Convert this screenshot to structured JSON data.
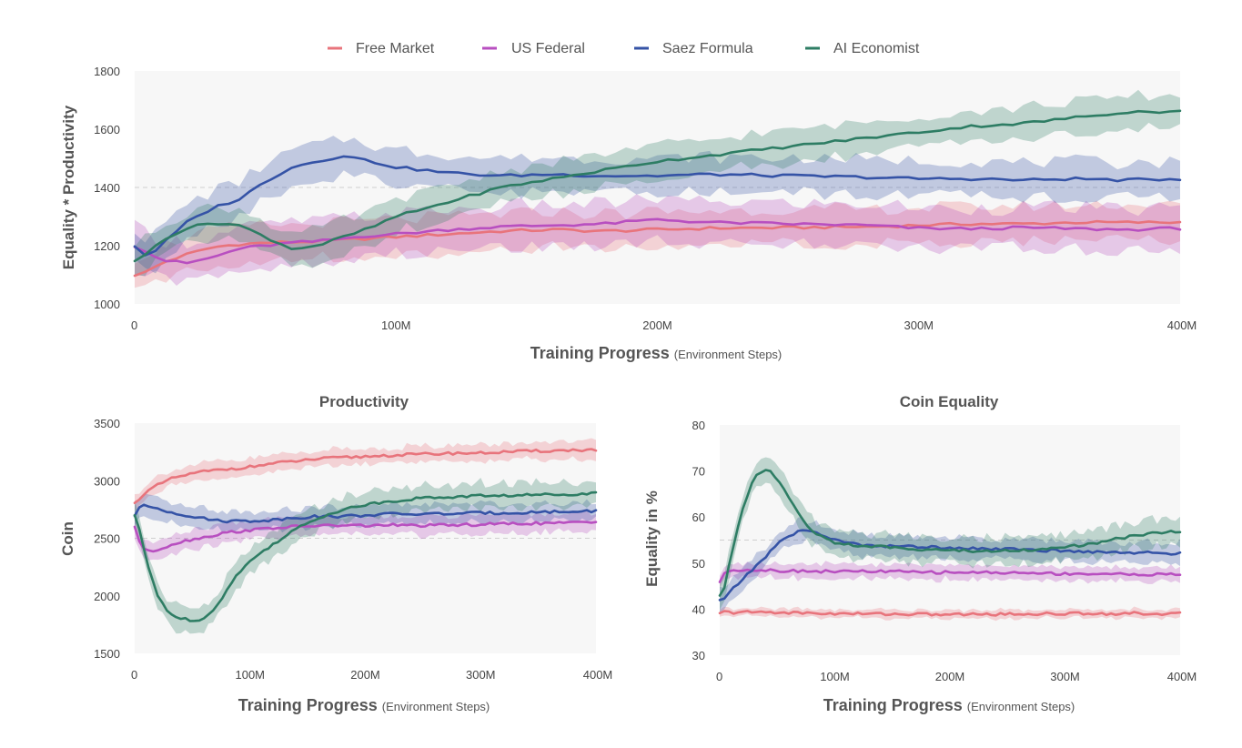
{
  "legend": [
    {
      "name": "Free Market",
      "color": "#e8747c"
    },
    {
      "name": "US Federal",
      "color": "#b84fc0"
    },
    {
      "name": "Saez Formula",
      "color": "#3553a6"
    },
    {
      "name": "AI Economist",
      "color": "#2e7d64"
    }
  ],
  "chart_data": [
    {
      "id": "top",
      "type": "line",
      "title": "",
      "xlabel_main": "Training Progress",
      "xlabel_sub": "(Environment Steps)",
      "ylabel": "Equality * Productivity",
      "xlim": [
        0,
        400
      ],
      "ylim": [
        1000,
        1800
      ],
      "xticks": [
        0,
        100,
        200,
        300,
        400
      ],
      "xtick_labels": [
        "0",
        "100M",
        "200M",
        "300M",
        "400M"
      ],
      "yticks": [
        1000,
        1200,
        1400,
        1600,
        1800
      ],
      "ytick_labels": [
        "1000",
        "1200",
        "1400",
        "1600",
        "1800"
      ],
      "reference_line": 1400,
      "x": [
        0,
        5,
        10,
        20,
        30,
        40,
        50,
        60,
        70,
        80,
        90,
        100,
        120,
        140,
        160,
        180,
        200,
        220,
        250,
        280,
        300,
        320,
        340,
        360,
        380,
        400
      ],
      "series": [
        {
          "name": "Free Market",
          "band": 60,
          "values": [
            1100,
            1110,
            1140,
            1170,
            1195,
            1205,
            1210,
            1212,
            1215,
            1220,
            1225,
            1230,
            1240,
            1250,
            1255,
            1250,
            1255,
            1260,
            1262,
            1265,
            1270,
            1275,
            1275,
            1280,
            1280,
            1280
          ]
        },
        {
          "name": "US Federal",
          "band": 70,
          "values": [
            1200,
            1180,
            1150,
            1140,
            1160,
            1190,
            1200,
            1210,
            1215,
            1225,
            1235,
            1240,
            1255,
            1265,
            1270,
            1275,
            1290,
            1280,
            1275,
            1270,
            1260,
            1258,
            1262,
            1258,
            1255,
            1260
          ]
        },
        {
          "name": "Saez Formula",
          "band": 60,
          "values": [
            1200,
            1160,
            1200,
            1280,
            1330,
            1360,
            1420,
            1470,
            1490,
            1510,
            1490,
            1470,
            1450,
            1440,
            1445,
            1440,
            1440,
            1445,
            1440,
            1435,
            1430,
            1430,
            1425,
            1430,
            1425,
            1430
          ]
        },
        {
          "name": "AI Economist",
          "band": 55,
          "values": [
            1150,
            1170,
            1220,
            1260,
            1280,
            1270,
            1230,
            1190,
            1200,
            1230,
            1260,
            1300,
            1350,
            1400,
            1430,
            1460,
            1490,
            1510,
            1540,
            1570,
            1590,
            1610,
            1620,
            1640,
            1660,
            1660
          ]
        }
      ]
    },
    {
      "id": "bl",
      "type": "line",
      "title": "Productivity",
      "xlabel_main": "Training Progress",
      "xlabel_sub": "(Environment Steps)",
      "ylabel": "Coin",
      "xlim": [
        0,
        400
      ],
      "ylim": [
        1500,
        3500
      ],
      "xticks": [
        0,
        100,
        200,
        300,
        400
      ],
      "xtick_labels": [
        "0",
        "100M",
        "200M",
        "300M",
        "400M"
      ],
      "yticks": [
        1500,
        2000,
        2500,
        3000,
        3500
      ],
      "ytick_labels": [
        "1500",
        "2000",
        "2500",
        "3000",
        "3500"
      ],
      "reference_line": 2500,
      "x": [
        0,
        5,
        10,
        20,
        30,
        40,
        50,
        60,
        70,
        80,
        90,
        100,
        120,
        140,
        160,
        180,
        200,
        220,
        250,
        280,
        300,
        320,
        340,
        360,
        380,
        400
      ],
      "series": [
        {
          "name": "Free Market",
          "band": 70,
          "values": [
            2800,
            2860,
            2900,
            2960,
            3010,
            3040,
            3060,
            3080,
            3090,
            3100,
            3110,
            3120,
            3150,
            3170,
            3190,
            3200,
            3210,
            3220,
            3230,
            3240,
            3240,
            3250,
            3255,
            3260,
            3265,
            3270
          ]
        },
        {
          "name": "US Federal",
          "band": 80,
          "values": [
            2600,
            2450,
            2380,
            2400,
            2440,
            2470,
            2490,
            2510,
            2530,
            2550,
            2560,
            2570,
            2590,
            2600,
            2610,
            2610,
            2610,
            2615,
            2610,
            2615,
            2620,
            2625,
            2630,
            2630,
            2635,
            2640
          ]
        },
        {
          "name": "Saez Formula",
          "band": 80,
          "values": [
            2700,
            2780,
            2780,
            2760,
            2730,
            2710,
            2690,
            2670,
            2660,
            2650,
            2650,
            2650,
            2660,
            2680,
            2690,
            2690,
            2700,
            2710,
            2710,
            2715,
            2720,
            2720,
            2725,
            2730,
            2730,
            2740
          ]
        },
        {
          "name": "AI Economist",
          "band": 110,
          "values": [
            2700,
            2550,
            2300,
            2000,
            1850,
            1800,
            1790,
            1800,
            1900,
            2050,
            2200,
            2300,
            2450,
            2580,
            2680,
            2750,
            2790,
            2820,
            2850,
            2860,
            2870,
            2870,
            2875,
            2880,
            2885,
            2890
          ]
        }
      ]
    },
    {
      "id": "br",
      "type": "line",
      "title": "Coin Equality",
      "xlabel_main": "Training Progress",
      "xlabel_sub": "(Environment Steps)",
      "ylabel": "Equality in %",
      "xlim": [
        0,
        400
      ],
      "ylim": [
        30,
        80
      ],
      "xticks": [
        0,
        100,
        200,
        300,
        400
      ],
      "xtick_labels": [
        "0",
        "100M",
        "200M",
        "300M",
        "400M"
      ],
      "yticks": [
        30,
        40,
        50,
        60,
        70,
        80
      ],
      "ytick_labels": [
        "30",
        "40",
        "50",
        "60",
        "70",
        "80"
      ],
      "reference_line": 55,
      "x": [
        0,
        5,
        10,
        20,
        30,
        40,
        50,
        60,
        70,
        80,
        90,
        100,
        120,
        140,
        160,
        180,
        200,
        220,
        250,
        280,
        300,
        320,
        340,
        360,
        380,
        400
      ],
      "series": [
        {
          "name": "Free Market",
          "band": 0.9,
          "values": [
            39,
            39.5,
            39.2,
            39.4,
            39.3,
            39.4,
            39.3,
            39.2,
            39.2,
            39.1,
            39.1,
            39.0,
            39.0,
            39.0,
            38.9,
            38.9,
            38.8,
            38.9,
            38.9,
            39.0,
            39.0,
            39.1,
            39.0,
            39.1,
            39.0,
            39.0
          ]
        },
        {
          "name": "US Federal",
          "band": 1.5,
          "values": [
            46,
            48,
            48.5,
            48.6,
            48.5,
            48.5,
            48.4,
            48.3,
            48.3,
            48.3,
            48.2,
            48.2,
            48.2,
            48.2,
            48.1,
            48.0,
            48.0,
            48.0,
            47.9,
            47.8,
            47.7,
            47.7,
            47.6,
            47.6,
            47.5,
            47.5
          ]
        },
        {
          "name": "Saez Formula",
          "band": 2.2,
          "values": [
            42,
            42.5,
            44,
            46.5,
            49,
            51.5,
            54,
            56,
            57,
            57,
            56,
            55,
            54,
            53.8,
            53.6,
            53.5,
            53.4,
            53.2,
            53,
            52.8,
            52.6,
            52.5,
            52.4,
            52.3,
            52.2,
            52
          ]
        },
        {
          "name": "AI Economist",
          "band": 2.8,
          "values": [
            43,
            45,
            52,
            62,
            69,
            70.5,
            68.5,
            64,
            60,
            57,
            55.5,
            54.5,
            53.8,
            53.5,
            53.2,
            53,
            52.8,
            52.6,
            52.7,
            53,
            53.5,
            54,
            55,
            56,
            56.5,
            57
          ]
        }
      ]
    }
  ]
}
